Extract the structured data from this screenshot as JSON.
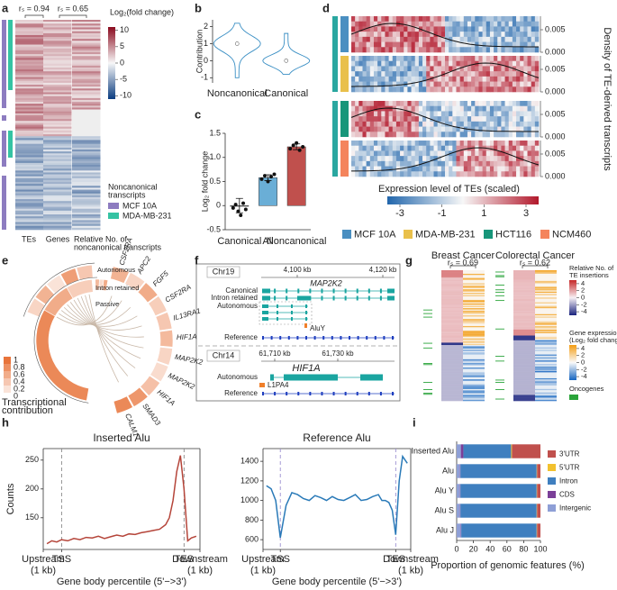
{
  "panel_labels": [
    "a",
    "b",
    "c",
    "d",
    "e",
    "f",
    "g",
    "h",
    "i"
  ],
  "a": {
    "correlations": [
      "rₛ = 0.94",
      "rₛ = 0.65"
    ],
    "colorbar": {
      "title": "Log₂(fold change)",
      "lim": [
        -11,
        11
      ],
      "ticks": [
        10,
        5,
        0,
        -5,
        -10
      ]
    },
    "legend": {
      "title": [
        "Noncanonical",
        "transcripts"
      ],
      "items": [
        {
          "name": "MCF 10A",
          "color": "#8d7cc0"
        },
        {
          "name": "MDA-MB-231",
          "color": "#35c3a3"
        }
      ]
    },
    "column_labels": [
      "TEs",
      "Genes"
    ],
    "column_note": [
      "Relative No. of",
      "noncanonical transcripts"
    ]
  },
  "d": {
    "density_label": "Density of TE-derived transcripts",
    "density_lim": [
      0,
      0.008
    ],
    "density_ticks": [
      {
        "value": 0.005,
        "label": "0.005"
      },
      {
        "value": 0,
        "label": "0.000"
      }
    ],
    "colorbar": {
      "title": "Expression level of TEs (scaled)",
      "lim": [
        -3.6,
        3.6
      ],
      "ticks": [
        -3,
        -1,
        1,
        3
      ]
    },
    "legend": [
      {
        "name": "MCF 10A",
        "color": "#4a8fc1"
      },
      {
        "name": "MDA-MB-231",
        "color": "#e9c04b"
      },
      {
        "name": "HCT116",
        "color": "#17967a"
      },
      {
        "name": "NCM460",
        "color": "#f4845c"
      }
    ]
  },
  "e": {
    "ring_labels": [
      "Autonomous",
      "Intron retained",
      "Passive"
    ],
    "genes": [
      "CSF2RA",
      "APC2",
      "FGF5",
      "CSF2RA",
      "IL13RA1",
      "HIF1A",
      "MAP2K2",
      "MAP2K2",
      "HIF1A",
      "SMAD3",
      "CALM1"
    ],
    "legend": {
      "ticks": [
        1,
        0.8,
        0.6,
        0.4,
        0.2,
        0
      ],
      "title": [
        "Transcriptional",
        "contribution"
      ]
    }
  },
  "f": {
    "top": {
      "chromosome": "Chr19",
      "ticks": [
        "4,100 kb",
        "4,120 kb"
      ],
      "gene": "MAP2K2",
      "tracks": [
        "Canonical",
        "Intron retained",
        "Autonomous",
        "Reference"
      ],
      "element": "AluY"
    },
    "bottom": {
      "chromosome": "Chr14",
      "ticks": [
        "61,710 kb",
        "61,730 kb"
      ],
      "gene": "HIF1A",
      "tracks": [
        "Autonomous",
        "Reference"
      ],
      "element": "L1PA4"
    }
  },
  "g": {
    "groups": [
      "Breast Cancer",
      "Colorectal Cancer"
    ],
    "correlations": [
      "rₛ = 0.69",
      "rₛ = 0.62"
    ],
    "colorbars": [
      {
        "title": [
          "Relative No. of",
          "TE insertions"
        ],
        "lim": [
          -5,
          5
        ],
        "ticks": [
          4,
          2,
          0,
          -2,
          -4
        ]
      },
      {
        "title": [
          "Gene expression",
          "(Log₂ fold change)"
        ],
        "lim": [
          -5,
          5
        ],
        "ticks": [
          4,
          2,
          0,
          -2,
          -4
        ]
      }
    ],
    "oncogenes": "Oncogenes"
  },
  "chart_data": [
    {
      "type": "violin",
      "ylabel": "Contribution",
      "categories": [
        "Noncanonical",
        "Canonical"
      ],
      "values": [
        1.0,
        0.0
      ],
      "min": [
        -1.0,
        -0.8
      ],
      "max": [
        2.2,
        1.6
      ],
      "color": "#3a8fc4",
      "ylim": [
        -1.3,
        2.4
      ],
      "yticks": [
        -1,
        0,
        1,
        2
      ]
    },
    {
      "type": "bar",
      "ylabel": "Log₂ fold change",
      "categories": [
        "Canonical",
        "All",
        "Noncanonical"
      ],
      "values": [
        0,
        0.58,
        1.22
      ],
      "errors": [
        0.15,
        0.06,
        0.06
      ],
      "colors": [
        "#9a9a9a",
        "#6aaed6",
        "#c0504d"
      ],
      "points": [
        [
          -0.05,
          0.02,
          -0.12,
          -0.2,
          0.05,
          -0.08
        ],
        [
          0.55,
          0.62,
          0.5,
          0.6,
          0.65
        ],
        [
          1.18,
          1.25,
          1.3,
          1.15,
          1.22
        ]
      ],
      "ylim": [
        -0.5,
        1.5
      ],
      "yticks": [
        -0.5,
        0,
        0.5,
        {
          "value": 1,
          "label": "1.0"
        },
        1.5
      ]
    },
    {
      "type": "line",
      "title": "Inserted Alu",
      "xlabel": "Gene body percentile (5'−>3')",
      "ylabel": "Counts",
      "color": "#b5453a",
      "dash_color": "#888888",
      "x": [
        -12,
        -8,
        -4,
        0,
        5,
        10,
        15,
        20,
        25,
        30,
        35,
        40,
        45,
        50,
        55,
        60,
        65,
        70,
        75,
        80,
        85,
        88,
        91,
        94,
        97,
        100,
        103,
        106,
        110
      ],
      "values": [
        105,
        110,
        108,
        112,
        110,
        114,
        112,
        116,
        115,
        118,
        114,
        117,
        120,
        118,
        122,
        121,
        124,
        126,
        128,
        130,
        138,
        150,
        180,
        230,
        258,
        200,
        110,
        115,
        118
      ],
      "xlim": [
        -15,
        113
      ],
      "xticks": [
        {
          "value": -15,
          "label": "Upstream\n(1 kb)"
        },
        {
          "value": 0,
          "label": "TSS"
        },
        {
          "value": 100,
          "label": "TES"
        },
        {
          "value": 113,
          "label": "Downstream\n(1 kb)"
        }
      ],
      "vlines": [
        0,
        100
      ],
      "ylim": [
        95,
        270
      ],
      "yticks": [
        150,
        200,
        250
      ]
    },
    {
      "type": "line",
      "title": "Reference Alu",
      "xlabel": "Gene body percentile (5'−>3')",
      "color": "#2a7ab8",
      "dash_color": "#9b8fd0",
      "x": [
        -12,
        -8,
        -4,
        0,
        5,
        10,
        15,
        20,
        25,
        30,
        35,
        40,
        45,
        50,
        55,
        60,
        65,
        70,
        75,
        80,
        85,
        88,
        91,
        94,
        97,
        100,
        103,
        106,
        110
      ],
      "values": [
        1150,
        1120,
        1000,
        620,
        950,
        1080,
        1060,
        1020,
        1000,
        1050,
        1030,
        1000,
        1040,
        1010,
        1000,
        1030,
        1060,
        1000,
        1010,
        1040,
        1060,
        1000,
        1000,
        980,
        900,
        650,
        1200,
        1450,
        1380
      ],
      "xlim": [
        -15,
        113
      ],
      "xticks": [
        {
          "value": -15,
          "label": "Upstream\n(1 kb)"
        },
        {
          "value": 0,
          "label": "TSS"
        },
        {
          "value": 100,
          "label": "TES"
        },
        {
          "value": 113,
          "label": "Downstream\n(1 kb)"
        }
      ],
      "vlines": [
        0,
        100
      ],
      "ylim": [
        500,
        1530
      ],
      "yticks": [
        600,
        800,
        1000,
        1200,
        1400
      ]
    },
    {
      "type": "stacked_barh",
      "xlabel": "Proportion of genomic features (%)",
      "categories": [
        "Inserted Alu",
        "Alu",
        "Alu Y",
        "Alu S",
        "Alu J"
      ],
      "series": [
        {
          "name": "3'UTR",
          "color": "#c0504d",
          "values": [
            34,
            4,
            4,
            4,
            4
          ]
        },
        {
          "name": "5'UTR",
          "color": "#f2c12e",
          "values": [
            1,
            0.5,
            0.5,
            0.5,
            0.5
          ]
        },
        {
          "name": "Intron",
          "color": "#3f7fbf",
          "values": [
            57,
            91,
            91,
            91,
            90
          ]
        },
        {
          "name": "CDS",
          "color": "#7b3f98",
          "values": [
            3,
            0.5,
            0.5,
            0.5,
            0.5
          ]
        },
        {
          "name": "Intergenic",
          "color": "#8e9fd6",
          "values": [
            5,
            4,
            4,
            4,
            5
          ]
        }
      ],
      "xlim": [
        0,
        100
      ],
      "xticks": [
        0,
        20,
        40,
        60,
        80,
        100
      ]
    }
  ]
}
